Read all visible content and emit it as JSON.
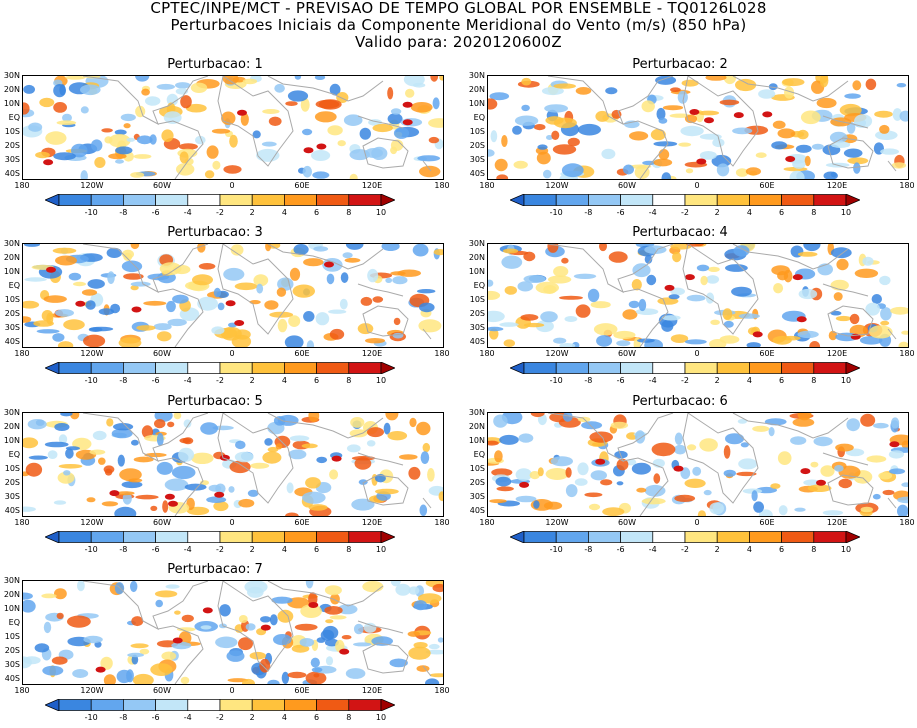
{
  "header": {
    "line1": "CPTEC/INPE/MCT - PREVISAO DE TEMPO GLOBAL POR ENSEMBLE - TQ0126L028",
    "line2": "Perturbacoes Iniciais da Componente Meridional do Vento (m/s) (850 hPa)",
    "line3": "Valido para: 2020120600Z"
  },
  "panels": [
    {
      "title": "Perturbacao: 1"
    },
    {
      "title": "Perturbacao: 2"
    },
    {
      "title": "Perturbacao: 3"
    },
    {
      "title": "Perturbacao: 4"
    },
    {
      "title": "Perturbacao: 5"
    },
    {
      "title": "Perturbacao: 6"
    },
    {
      "title": "Perturbacao: 7"
    }
  ],
  "lat_labels": [
    "30N",
    "20N",
    "10N",
    "EQ",
    "10S",
    "20S",
    "30S",
    "40S"
  ],
  "lon_labels": [
    "180",
    "120W",
    "60W",
    "0",
    "60E",
    "120E",
    "180"
  ],
  "colorbar": {
    "labels": [
      "-10",
      "-8",
      "-6",
      "-4",
      "-2",
      "2",
      "4",
      "6",
      "8",
      "10"
    ],
    "colors": [
      "#1f5fc8",
      "#3a86e0",
      "#62a6ee",
      "#94c8f5",
      "#c2e6f8",
      "#ffffff",
      "#ffe680",
      "#ffc23c",
      "#ff9a1e",
      "#f05a14",
      "#d21414",
      "#a00000"
    ]
  },
  "colors": {
    "land_outline": "#aaaaaa",
    "frame": "#000000"
  }
}
